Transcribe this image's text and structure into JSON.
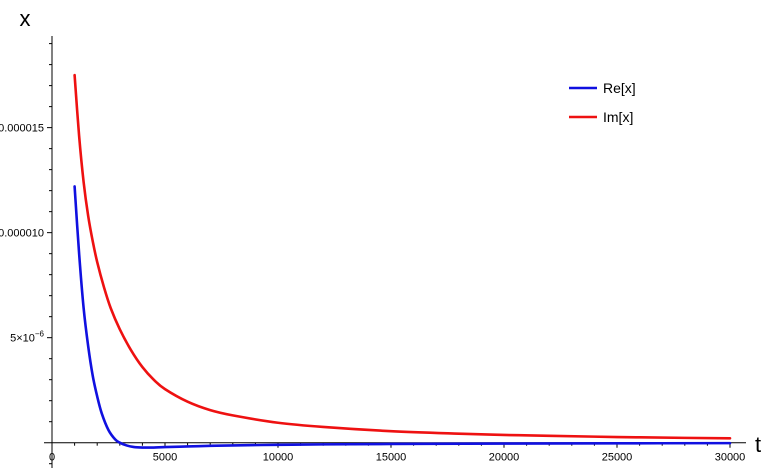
{
  "chart_data": {
    "type": "line",
    "xlabel": "t",
    "ylabel": "x",
    "xlim": [
      0,
      30000
    ],
    "ylim": [
      -3e-07,
      1.96e-05
    ],
    "x_ticks": [
      {
        "value": 0,
        "label": "0"
      },
      {
        "value": 5000,
        "label": "5000"
      },
      {
        "value": 10000,
        "label": "10000"
      },
      {
        "value": 15000,
        "label": "15000"
      },
      {
        "value": 20000,
        "label": "20000"
      },
      {
        "value": 25000,
        "label": "25000"
      },
      {
        "value": 30000,
        "label": "30000"
      }
    ],
    "y_ticks": [
      {
        "value": 5e-06,
        "label": "5×10",
        "exponent": "−6"
      },
      {
        "value": 1e-05,
        "label": "0.000010"
      },
      {
        "value": 1.5e-05,
        "label": "0.000015"
      }
    ],
    "grid": false,
    "legend_position": "top-right",
    "series": [
      {
        "name": "Re[x]",
        "color": "#1010e0",
        "x": [
          1000,
          1200,
          1400,
          1600,
          1800,
          2000,
          2200,
          2500,
          2800,
          3000,
          3300,
          3600,
          4000,
          4500,
          5000,
          6000,
          7000,
          8000,
          10000,
          12000,
          15000,
          20000,
          25000,
          30000
        ],
        "y": [
          1.22e-05,
          9e-06,
          6.4e-06,
          4.6e-06,
          3.2e-06,
          2.2e-06,
          1.4e-06,
          6e-07,
          1.5e-07,
          0.0,
          -1.3e-07,
          -2e-07,
          -2.3e-07,
          -2.3e-07,
          -2.1e-07,
          -1.8e-07,
          -1.5e-07,
          -1.3e-07,
          -1e-07,
          -8e-08,
          -6e-08,
          -4e-08,
          -3e-08,
          -2e-08
        ]
      },
      {
        "name": "Im[x]",
        "color": "#ee1111",
        "x": [
          1000,
          1200,
          1400,
          1600,
          1800,
          2000,
          2300,
          2600,
          3000,
          3500,
          4000,
          4500,
          5000,
          6000,
          7000,
          8000,
          10000,
          12000,
          15000,
          18000,
          20000,
          22000,
          25000,
          28000,
          30000
        ],
        "y": [
          1.75e-05,
          1.46e-05,
          1.24e-05,
          1.08e-05,
          9.6e-06,
          8.6e-06,
          7.4e-06,
          6.4e-06,
          5.4e-06,
          4.4e-06,
          3.6e-06,
          3e-06,
          2.55e-06,
          1.95e-06,
          1.55e-06,
          1.3e-06,
          9.5e-07,
          7.5e-07,
          5.5e-07,
          4.3e-07,
          3.7e-07,
          3.3e-07,
          2.7e-07,
          2.3e-07,
          2.1e-07
        ]
      }
    ]
  }
}
